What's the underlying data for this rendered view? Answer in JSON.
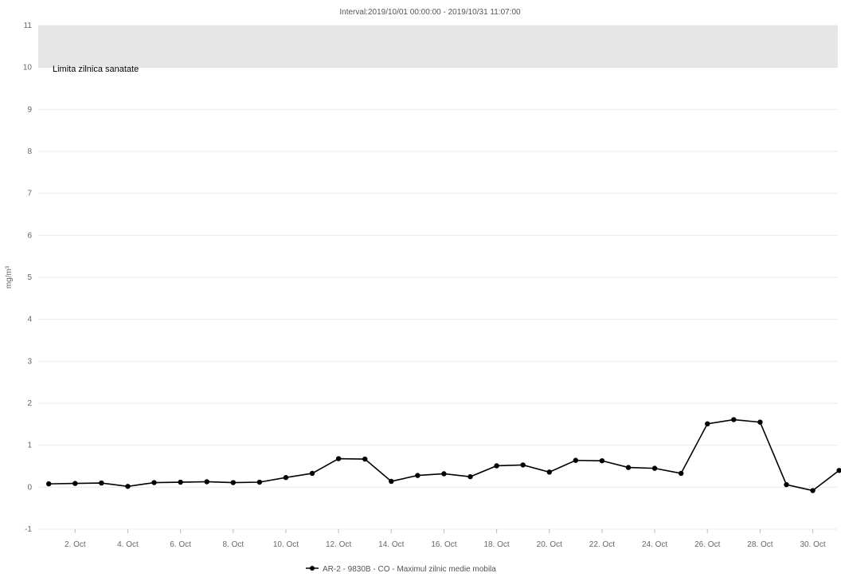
{
  "chart_data": {
    "type": "line",
    "title": "Interval:2019/10/01 00:00:00 - 2019/10/31 11:07:00",
    "ylabel": "mg/m³",
    "ylim": [
      -1,
      11
    ],
    "yticks": [
      -1,
      0,
      1,
      2,
      3,
      4,
      5,
      6,
      7,
      8,
      9,
      10,
      11
    ],
    "xlim": [
      0.6,
      30.95
    ],
    "xticks": [
      2,
      4,
      6,
      8,
      10,
      12,
      14,
      16,
      18,
      20,
      22,
      24,
      26,
      28,
      30
    ],
    "xtick_labels": [
      "2. Oct",
      "4. Oct",
      "6. Oct",
      "8. Oct",
      "10. Oct",
      "12. Oct",
      "14. Oct",
      "16. Oct",
      "18. Oct",
      "20. Oct",
      "22. Oct",
      "24. Oct",
      "26. Oct",
      "28. Oct",
      "30. Oct"
    ],
    "grid": true,
    "legend_position": "bottom-center",
    "plot_band": {
      "from": 10,
      "to": 11,
      "label": "Limita zilnica sanatate",
      "color": "#e6e6e6"
    },
    "series": [
      {
        "name": "AR-2 - 9830B - CO - Maximul zilnic medie mobila",
        "color": "#000000",
        "x": [
          1,
          2,
          3,
          4,
          5,
          6,
          7,
          8,
          9,
          10,
          11,
          12,
          13,
          14,
          15,
          16,
          17,
          18,
          19,
          20,
          21,
          22,
          23,
          24,
          25,
          26,
          27,
          28,
          29,
          30,
          31
        ],
        "values": [
          0.08,
          0.09,
          0.1,
          0.02,
          0.11,
          0.12,
          0.13,
          0.11,
          0.12,
          0.23,
          0.33,
          0.68,
          0.67,
          0.14,
          0.28,
          0.32,
          0.25,
          0.51,
          0.53,
          0.36,
          0.64,
          0.63,
          0.47,
          0.45,
          0.33,
          1.51,
          1.61,
          1.55,
          0.06,
          -0.08,
          0.4
        ]
      }
    ]
  }
}
